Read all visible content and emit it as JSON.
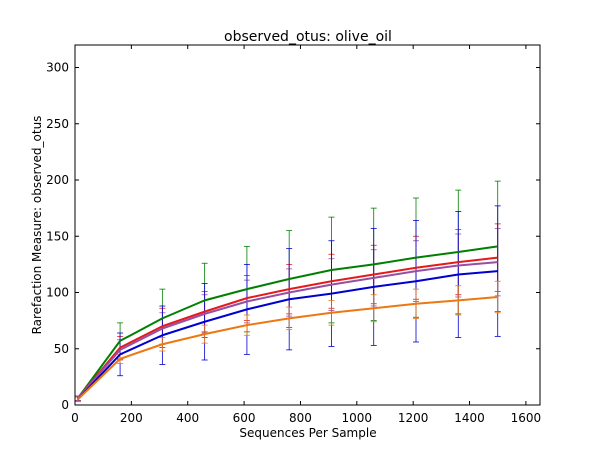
{
  "chart_data": {
    "type": "line",
    "title": "observed_otus: olive_oil",
    "xlabel": "Sequences Per Sample",
    "ylabel": "Rarefaction Measure: observed_otus",
    "xlim": [
      0,
      1650
    ],
    "ylim": [
      0,
      320
    ],
    "xticks": [
      0,
      200,
      400,
      600,
      800,
      1000,
      1200,
      1400,
      1600
    ],
    "yticks": [
      0,
      50,
      100,
      150,
      200,
      250,
      300
    ],
    "grid": false,
    "x": [
      10,
      160,
      310,
      460,
      610,
      760,
      910,
      1060,
      1210,
      1360,
      1500
    ],
    "series": [
      {
        "color": "#008000",
        "values": [
          6,
          57,
          77,
          93,
          103,
          112,
          120,
          125,
          131,
          136,
          141
        ],
        "errors": [
          2,
          16,
          26,
          33,
          38,
          43,
          47,
          50,
          53,
          55,
          58
        ]
      },
      {
        "color": "#e41a1c",
        "values": [
          6,
          51,
          70,
          83,
          95,
          103,
          110,
          116,
          122,
          127,
          131
        ],
        "errors": [
          2,
          10,
          16,
          18,
          20,
          22,
          24,
          26,
          28,
          29,
          30
        ]
      },
      {
        "color": "#984ea3",
        "values": [
          6,
          49,
          68,
          81,
          92,
          100,
          107,
          113,
          119,
          124,
          127
        ],
        "errors": [
          2,
          9,
          14,
          17,
          19,
          21,
          23,
          25,
          27,
          28,
          30
        ]
      },
      {
        "color": "#0000d0",
        "values": [
          5,
          45,
          62,
          74,
          85,
          94,
          99,
          105,
          110,
          116,
          119
        ],
        "errors": [
          2,
          19,
          26,
          34,
          40,
          45,
          47,
          52,
          54,
          56,
          58
        ]
      },
      {
        "color": "#ee7711",
        "values": [
          5,
          41,
          54,
          63,
          71,
          77,
          82,
          86,
          90,
          93,
          96
        ],
        "errors": [
          2,
          4,
          6,
          8,
          9,
          10,
          11,
          12,
          13,
          13,
          14
        ]
      }
    ]
  }
}
